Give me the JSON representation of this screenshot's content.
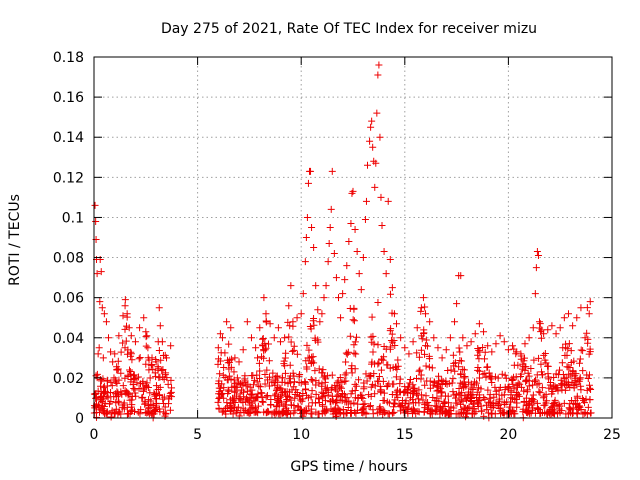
{
  "chart_data": {
    "type": "scatter",
    "title": "Day 275 of 2021, Rate Of TEC Index for receiver mizu",
    "xlabel": "GPS time / hours",
    "ylabel": "ROTI / TECUs",
    "xlim": [
      0,
      25
    ],
    "ylim": [
      0,
      0.18
    ],
    "x_ticks": [
      0,
      5,
      10,
      15,
      20,
      25
    ],
    "y_ticks": [
      0,
      0.02,
      0.04,
      0.06,
      0.08,
      0.1,
      0.12,
      0.14,
      0.16,
      0.18
    ],
    "x_tick_labels": [
      "0",
      "5",
      "10",
      "15",
      "20",
      "25"
    ],
    "y_tick_labels": [
      "0",
      "0.02",
      "0.04",
      "0.06",
      "0.08",
      "0.1",
      "0.12",
      "0.14",
      "0.16",
      "0.18"
    ],
    "grid": true,
    "marker": "+",
    "color": "#ee0000",
    "series": [
      {
        "points": [
          [
            0.05,
            0.106
          ],
          [
            0.08,
            0.098
          ],
          [
            0.1,
            0.089
          ],
          [
            0.12,
            0.079
          ],
          [
            0.15,
            0.072
          ],
          [
            0.3,
            0.079
          ],
          [
            0.35,
            0.073
          ],
          [
            0.28,
            0.058
          ],
          [
            0.4,
            0.055
          ],
          [
            0.5,
            0.052
          ],
          [
            0.6,
            0.048
          ],
          [
            0.2,
            0.032
          ],
          [
            0.25,
            0.035
          ],
          [
            0.45,
            0.03
          ],
          [
            0.7,
            0.04
          ],
          [
            0.8,
            0.033
          ],
          [
            0.9,
            0.028
          ],
          [
            1.0,
            0.032
          ],
          [
            1.2,
            0.041
          ],
          [
            1.4,
            0.051
          ],
          [
            1.5,
            0.056
          ],
          [
            1.6,
            0.052
          ],
          [
            1.7,
            0.045
          ],
          [
            1.8,
            0.041
          ],
          [
            2.0,
            0.038
          ],
          [
            2.2,
            0.045
          ],
          [
            2.4,
            0.05
          ],
          [
            2.5,
            0.043
          ],
          [
            2.6,
            0.035
          ],
          [
            2.8,
            0.03
          ],
          [
            3.0,
            0.028
          ],
          [
            3.1,
            0.038
          ],
          [
            3.15,
            0.055
          ],
          [
            3.2,
            0.046
          ],
          [
            3.3,
            0.038
          ],
          [
            3.5,
            0.03
          ],
          [
            3.7,
            0.036
          ],
          [
            6.0,
            0.035
          ],
          [
            6.1,
            0.042
          ],
          [
            6.2,
            0.04
          ],
          [
            6.4,
            0.048
          ],
          [
            6.6,
            0.045
          ],
          [
            6.8,
            0.03
          ],
          [
            7.0,
            0.028
          ],
          [
            7.2,
            0.034
          ],
          [
            7.4,
            0.048
          ],
          [
            7.6,
            0.04
          ],
          [
            7.8,
            0.035
          ],
          [
            8.0,
            0.045
          ],
          [
            8.2,
            0.06
          ],
          [
            8.3,
            0.052
          ],
          [
            8.5,
            0.047
          ],
          [
            8.7,
            0.04
          ],
          [
            8.9,
            0.045
          ],
          [
            9.0,
            0.038
          ],
          [
            9.2,
            0.04
          ],
          [
            9.4,
            0.056
          ],
          [
            9.5,
            0.066
          ],
          [
            9.6,
            0.048
          ],
          [
            9.8,
            0.05
          ],
          [
            10.0,
            0.052
          ],
          [
            10.1,
            0.062
          ],
          [
            10.2,
            0.078
          ],
          [
            10.25,
            0.09
          ],
          [
            10.3,
            0.1
          ],
          [
            10.35,
            0.117
          ],
          [
            10.4,
            0.123
          ],
          [
            10.45,
            0.123
          ],
          [
            10.5,
            0.095
          ],
          [
            10.6,
            0.085
          ],
          [
            10.7,
            0.066
          ],
          [
            10.8,
            0.054
          ],
          [
            10.9,
            0.048
          ],
          [
            11.0,
            0.052
          ],
          [
            11.1,
            0.06
          ],
          [
            11.2,
            0.066
          ],
          [
            11.3,
            0.078
          ],
          [
            11.35,
            0.087
          ],
          [
            11.4,
            0.095
          ],
          [
            11.45,
            0.104
          ],
          [
            11.5,
            0.123
          ],
          [
            11.6,
            0.082
          ],
          [
            11.7,
            0.07
          ],
          [
            11.8,
            0.06
          ],
          [
            11.9,
            0.05
          ],
          [
            12.0,
            0.062
          ],
          [
            12.1,
            0.069
          ],
          [
            12.2,
            0.076
          ],
          [
            12.3,
            0.088
          ],
          [
            12.4,
            0.097
          ],
          [
            12.45,
            0.112
          ],
          [
            12.5,
            0.113
          ],
          [
            12.6,
            0.094
          ],
          [
            12.7,
            0.083
          ],
          [
            12.8,
            0.072
          ],
          [
            12.9,
            0.064
          ],
          [
            13.0,
            0.08
          ],
          [
            13.1,
            0.099
          ],
          [
            13.15,
            0.108
          ],
          [
            13.2,
            0.126
          ],
          [
            13.3,
            0.138
          ],
          [
            13.35,
            0.145
          ],
          [
            13.4,
            0.148
          ],
          [
            13.45,
            0.135
          ],
          [
            13.5,
            0.128
          ],
          [
            13.55,
            0.115
          ],
          [
            13.6,
            0.127
          ],
          [
            13.65,
            0.152
          ],
          [
            13.7,
            0.171
          ],
          [
            13.75,
            0.176
          ],
          [
            13.8,
            0.14
          ],
          [
            13.85,
            0.11
          ],
          [
            13.9,
            0.096
          ],
          [
            14.0,
            0.083
          ],
          [
            14.1,
            0.072
          ],
          [
            14.2,
            0.108
          ],
          [
            14.3,
            0.079
          ],
          [
            14.4,
            0.065
          ],
          [
            14.5,
            0.052
          ],
          [
            14.6,
            0.047
          ],
          [
            14.8,
            0.04
          ],
          [
            15.0,
            0.035
          ],
          [
            15.2,
            0.032
          ],
          [
            15.4,
            0.038
          ],
          [
            15.6,
            0.045
          ],
          [
            15.8,
            0.055
          ],
          [
            15.9,
            0.06
          ],
          [
            16.0,
            0.052
          ],
          [
            16.2,
            0.048
          ],
          [
            16.4,
            0.04
          ],
          [
            16.6,
            0.035
          ],
          [
            16.8,
            0.03
          ],
          [
            17.0,
            0.034
          ],
          [
            17.2,
            0.04
          ],
          [
            17.4,
            0.048
          ],
          [
            17.5,
            0.057
          ],
          [
            17.6,
            0.071
          ],
          [
            17.7,
            0.071
          ],
          [
            17.8,
            0.04
          ],
          [
            18.0,
            0.036
          ],
          [
            18.2,
            0.038
          ],
          [
            18.4,
            0.042
          ],
          [
            18.6,
            0.047
          ],
          [
            18.8,
            0.043
          ],
          [
            19.0,
            0.036
          ],
          [
            19.2,
            0.033
          ],
          [
            19.4,
            0.037
          ],
          [
            19.6,
            0.041
          ],
          [
            19.8,
            0.038
          ],
          [
            20.0,
            0.034
          ],
          [
            20.2,
            0.036
          ],
          [
            20.4,
            0.033
          ],
          [
            20.6,
            0.032
          ],
          [
            20.8,
            0.037
          ],
          [
            21.0,
            0.04
          ],
          [
            21.2,
            0.045
          ],
          [
            21.3,
            0.062
          ],
          [
            21.35,
            0.075
          ],
          [
            21.4,
            0.083
          ],
          [
            21.45,
            0.081
          ],
          [
            21.5,
            0.048
          ],
          [
            21.7,
            0.042
          ],
          [
            21.9,
            0.044
          ],
          [
            22.1,
            0.046
          ],
          [
            22.3,
            0.042
          ],
          [
            22.5,
            0.045
          ],
          [
            22.7,
            0.05
          ],
          [
            22.9,
            0.052
          ],
          [
            23.1,
            0.046
          ],
          [
            23.3,
            0.05
          ],
          [
            23.5,
            0.055
          ],
          [
            23.7,
            0.04
          ],
          [
            23.9,
            0.052
          ],
          [
            23.95,
            0.058
          ]
        ]
      }
    ],
    "dense_band": {
      "segments": [
        [
          0.0,
          3.75
        ],
        [
          5.95,
          24.0
        ]
      ],
      "base_max": 0.02,
      "peaks": [
        [
          1.5,
          0.045
        ],
        [
          2.5,
          0.04
        ],
        [
          3.2,
          0.035
        ],
        [
          6.3,
          0.035
        ],
        [
          8.2,
          0.04
        ],
        [
          9.5,
          0.045
        ],
        [
          10.6,
          0.05
        ],
        [
          12.5,
          0.06
        ],
        [
          13.5,
          0.065
        ],
        [
          14.3,
          0.045
        ],
        [
          15.9,
          0.045
        ],
        [
          17.5,
          0.035
        ],
        [
          18.7,
          0.035
        ],
        [
          20.5,
          0.03
        ],
        [
          21.5,
          0.04
        ],
        [
          22.8,
          0.04
        ],
        [
          23.8,
          0.045
        ]
      ]
    }
  }
}
